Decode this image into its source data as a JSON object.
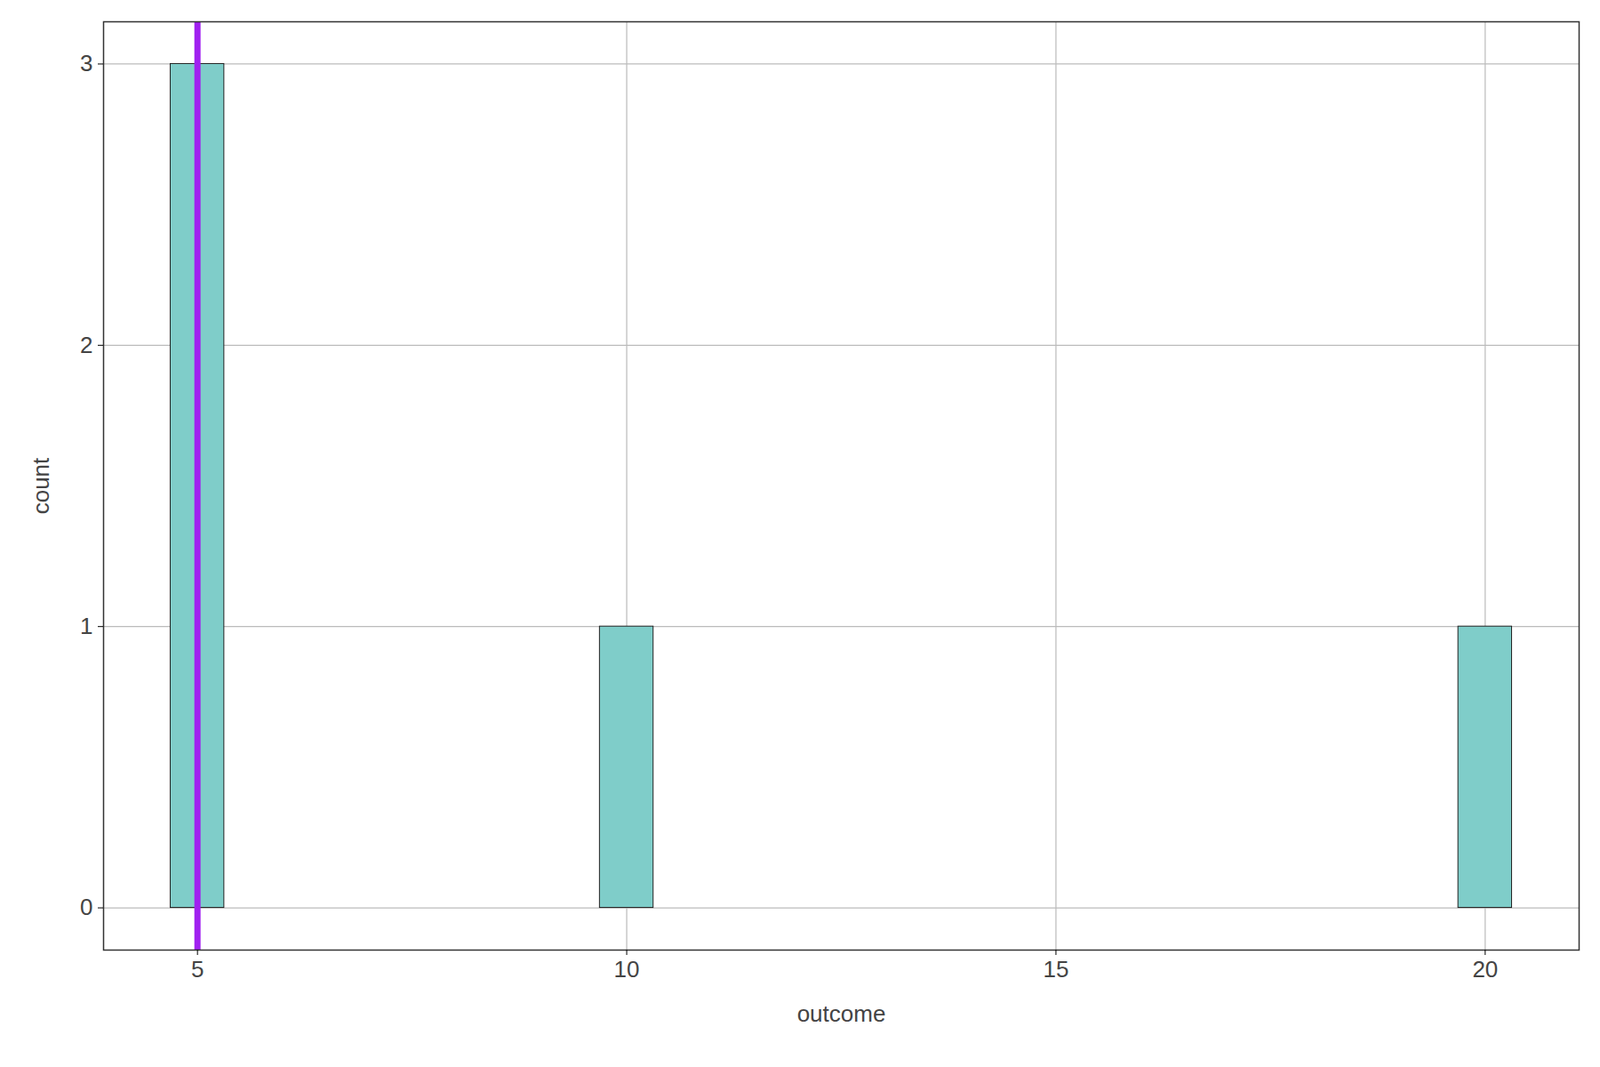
{
  "chart_data": {
    "type": "histogram",
    "x_label": "outcome",
    "y_label": "count",
    "bins": [
      4.6875,
      5.3125,
      5.9375,
      6.5625,
      7.1875,
      7.8125,
      8.4375,
      9.0625,
      9.6875,
      10.3125,
      10.9375,
      11.5625,
      12.1875,
      12.8125,
      13.4375,
      14.0625,
      14.6875,
      15.3125,
      15.9375,
      16.5625,
      17.1875,
      17.8125,
      18.4375,
      19.0625,
      19.6875,
      20.3125
    ],
    "counts": [
      3,
      0,
      0,
      0,
      0,
      0,
      0,
      0,
      1,
      0,
      0,
      0,
      0,
      0,
      0,
      0,
      0,
      0,
      0,
      0,
      0,
      0,
      0,
      0,
      1
    ],
    "color": "#7fcdc9",
    "reference_line": {
      "x": 5,
      "color": "#a020f0"
    },
    "xlim": [
      3.906,
      21.094
    ],
    "ylim": [
      -0.15,
      3.15
    ],
    "xticks": [
      5,
      10,
      15,
      20
    ],
    "yticks": [
      0,
      1,
      2,
      3
    ],
    "grid": true
  }
}
